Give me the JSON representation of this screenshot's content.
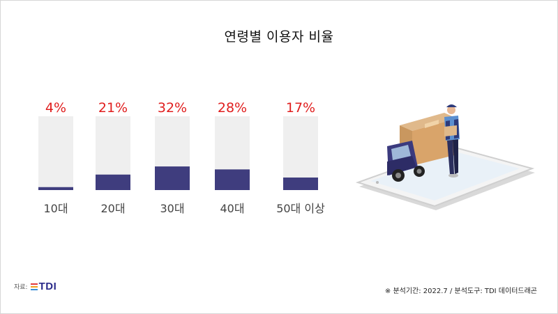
{
  "title": "연령별 이용자 비율",
  "chart_data": {
    "type": "bar",
    "categories": [
      "10대",
      "20대",
      "30대",
      "40대",
      "50대 이상"
    ],
    "values": [
      4,
      21,
      32,
      28,
      17
    ],
    "data_labels": [
      "4%",
      "21%",
      "32%",
      "28%",
      "17%"
    ],
    "unit": "%",
    "ylim": [
      0,
      100
    ],
    "grid": false,
    "colors": {
      "bar": "#3f3d7e",
      "track": "#efefef",
      "label": "#e01e1e",
      "category": "#444444"
    }
  },
  "footer": {
    "source_label": "자료:",
    "logo_text": "TDI",
    "note": "※ 분석기간:  2022.7  / 분석도구: TDI 데이터드래곤"
  },
  "illustration": {
    "icon": "delivery-truck-smartphone-illustration"
  }
}
